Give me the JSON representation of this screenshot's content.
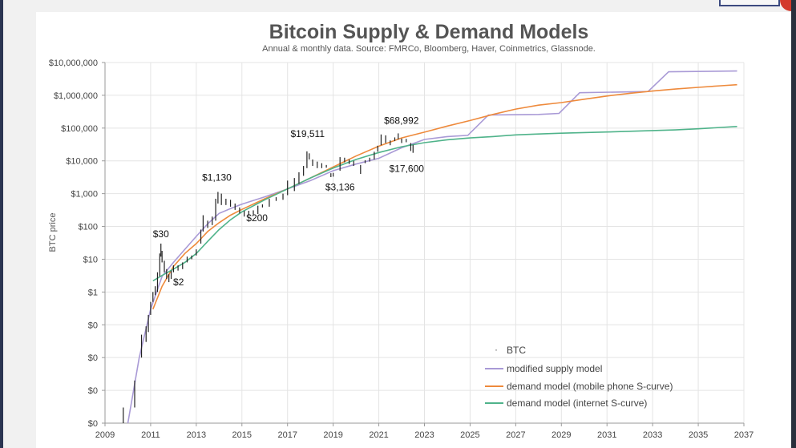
{
  "colors": {
    "supply": "#a99ad6",
    "mobile": "#ee8a3c",
    "internet": "#4fb38a",
    "btc": "#222222"
  },
  "chart_data": {
    "type": "line",
    "title": "Bitcoin Supply & Demand Models",
    "subtitle": "Annual & monthly data.  Source: FMRCo, Bloomberg, Haver, Coinmetrics, Glassnode.",
    "ylabel": "BTC price",
    "xlabel": "",
    "x_ticks": [
      "2009",
      "2011",
      "2013",
      "2015",
      "2017",
      "2019",
      "2021",
      "2023",
      "2025",
      "2027",
      "2029",
      "2031",
      "2033",
      "2035",
      "2037"
    ],
    "xlim": [
      2009,
      2037
    ],
    "y_scale": "log",
    "ylim": [
      0.0001,
      10000000
    ],
    "y_ticks": [
      {
        "value": 10000000,
        "label": "$10,000,000"
      },
      {
        "value": 1000000,
        "label": "$1,000,000"
      },
      {
        "value": 100000,
        "label": "$100,000"
      },
      {
        "value": 10000,
        "label": "$10,000"
      },
      {
        "value": 1000,
        "label": "$1,000"
      },
      {
        "value": 100,
        "label": "$100"
      },
      {
        "value": 10,
        "label": "$10"
      },
      {
        "value": 1,
        "label": "$1"
      },
      {
        "value": 0.1,
        "label": "$0"
      },
      {
        "value": 0.01,
        "label": "$0"
      },
      {
        "value": 0.001,
        "label": "$0"
      },
      {
        "value": 0.0001,
        "label": "$0"
      }
    ],
    "grid": true,
    "legend_position": "bottom-right",
    "annotations": [
      {
        "text": "$30",
        "x": 2011.45,
        "y": 30
      },
      {
        "text": "$2",
        "x": 2011.8,
        "y": 2
      },
      {
        "text": "$1,130",
        "x": 2013.9,
        "y": 1130
      },
      {
        "text": "$200",
        "x": 2015.1,
        "y": 200
      },
      {
        "text": "$19,511",
        "x": 2017.95,
        "y": 19511
      },
      {
        "text": "$3,136",
        "x": 2018.95,
        "y": 3136
      },
      {
        "text": "$68,992",
        "x": 2021.85,
        "y": 68992
      },
      {
        "text": "$17,600",
        "x": 2022.5,
        "y": 17600
      }
    ],
    "series": [
      {
        "name": "BTC",
        "kind": "bars",
        "x": [
          2009.8,
          2010.3,
          2010.6,
          2010.8,
          2010.9,
          2011.0,
          2011.1,
          2011.2,
          2011.3,
          2011.4,
          2011.45,
          2011.5,
          2011.6,
          2011.7,
          2011.8,
          2011.9,
          2012.0,
          2012.2,
          2012.4,
          2012.6,
          2012.8,
          2013.0,
          2013.2,
          2013.3,
          2013.5,
          2013.7,
          2013.85,
          2013.95,
          2014.1,
          2014.3,
          2014.5,
          2014.7,
          2014.9,
          2015.1,
          2015.3,
          2015.5,
          2015.7,
          2015.9,
          2016.2,
          2016.5,
          2016.8,
          2017.0,
          2017.3,
          2017.5,
          2017.7,
          2017.85,
          2017.95,
          2018.1,
          2018.3,
          2018.5,
          2018.7,
          2018.9,
          2019.0,
          2019.3,
          2019.5,
          2019.7,
          2019.9,
          2020.2,
          2020.4,
          2020.6,
          2020.8,
          2020.95,
          2021.1,
          2021.3,
          2021.5,
          2021.7,
          2021.85,
          2022.0,
          2022.2,
          2022.4,
          2022.5
        ],
        "low": [
          0.0001,
          0.0003,
          0.01,
          0.03,
          0.06,
          0.2,
          0.5,
          0.8,
          1.0,
          3,
          12,
          8,
          4,
          2.5,
          2,
          2.5,
          4,
          4.5,
          5,
          8,
          10,
          13,
          30,
          70,
          90,
          110,
          150,
          500,
          450,
          450,
          400,
          320,
          250,
          200,
          220,
          230,
          240,
          380,
          400,
          600,
          650,
          900,
          1200,
          2000,
          3500,
          6000,
          11000,
          7000,
          6000,
          6000,
          6200,
          3200,
          3300,
          5000,
          9000,
          8000,
          7000,
          4000,
          8500,
          9500,
          11000,
          19000,
          30000,
          35000,
          30000,
          40000,
          45000,
          35000,
          37000,
          20000,
          17600
        ],
        "high": [
          0.0003,
          0.002,
          0.05,
          0.09,
          0.2,
          0.5,
          1.0,
          1.5,
          4,
          15,
          30,
          18,
          9,
          5,
          3.5,
          4.5,
          6.5,
          6.5,
          8,
          12,
          13,
          20,
          80,
          220,
          150,
          200,
          700,
          1130,
          1000,
          700,
          650,
          500,
          380,
          300,
          300,
          310,
          430,
          470,
          700,
          780,
          1000,
          2500,
          3000,
          4500,
          7000,
          19511,
          17000,
          11000,
          9500,
          8500,
          7500,
          4200,
          4300,
          13000,
          12500,
          11000,
          10000,
          7500,
          10500,
          12500,
          19000,
          29000,
          64000,
          60000,
          42000,
          52000,
          68992,
          48000,
          47000,
          35000,
          31000
        ]
      },
      {
        "name": "modified supply model",
        "kind": "line",
        "x": [
          2010.0,
          2010.5,
          2011.0,
          2011.5,
          2012.0,
          2012.5,
          2013.0,
          2013.5,
          2014.0,
          2014.5,
          2015.0,
          2016.0,
          2017.0,
          2018.0,
          2019.0,
          2020.0,
          2021.0,
          2022.0,
          2023.0,
          2024.0,
          2024.9,
          2025.8,
          2028.0,
          2028.9,
          2029.8,
          2032.8,
          2033.7,
          2036.7
        ],
        "y": [
          0.0001,
          0.01,
          0.3,
          3,
          8,
          20,
          50,
          120,
          250,
          350,
          480,
          800,
          1400,
          2500,
          5000,
          8000,
          12000,
          25000,
          45000,
          55000,
          60000,
          250000,
          260000,
          280000,
          1200000,
          1300000,
          5200000,
          5500000
        ]
      },
      {
        "name": "demand model (mobile phone S-curve)",
        "kind": "line",
        "x": [
          2011.1,
          2011.5,
          2012.0,
          2012.5,
          2013.0,
          2013.5,
          2014.0,
          2014.5,
          2015.0,
          2016.0,
          2017.0,
          2018.0,
          2019.0,
          2020.0,
          2021.0,
          2022.0,
          2023.0,
          2024.0,
          2025.0,
          2026.0,
          2027.0,
          2028.0,
          2029.0,
          2030.0,
          2031.0,
          2032.0,
          2033.0,
          2034.0,
          2035.0,
          2036.0,
          2036.7
        ],
        "y": [
          0.3,
          1.5,
          6,
          15,
          30,
          70,
          130,
          220,
          330,
          700,
          1400,
          3000,
          6500,
          14000,
          28000,
          50000,
          75000,
          115000,
          170000,
          260000,
          380000,
          500000,
          600000,
          760000,
          950000,
          1150000,
          1350000,
          1550000,
          1750000,
          1950000,
          2100000
        ]
      },
      {
        "name": "demand model (internet S-curve)",
        "kind": "line",
        "x": [
          2011.1,
          2011.5,
          2012.0,
          2012.5,
          2013.0,
          2013.5,
          2014.0,
          2014.5,
          2015.0,
          2016.0,
          2017.0,
          2018.0,
          2019.0,
          2020.0,
          2021.0,
          2022.0,
          2023.0,
          2024.0,
          2025.0,
          2026.0,
          2027.0,
          2028.0,
          2029.0,
          2030.0,
          2031.0,
          2032.0,
          2033.0,
          2034.0,
          2035.0,
          2036.0,
          2036.7
        ],
        "y": [
          2.2,
          3.2,
          5,
          8,
          15,
          35,
          80,
          160,
          280,
          650,
          1400,
          3000,
          6000,
          11000,
          18000,
          27000,
          36000,
          44000,
          50000,
          55000,
          62000,
          66000,
          70000,
          73000,
          76000,
          80000,
          84000,
          88000,
          95000,
          105000,
          112000
        ]
      }
    ]
  }
}
